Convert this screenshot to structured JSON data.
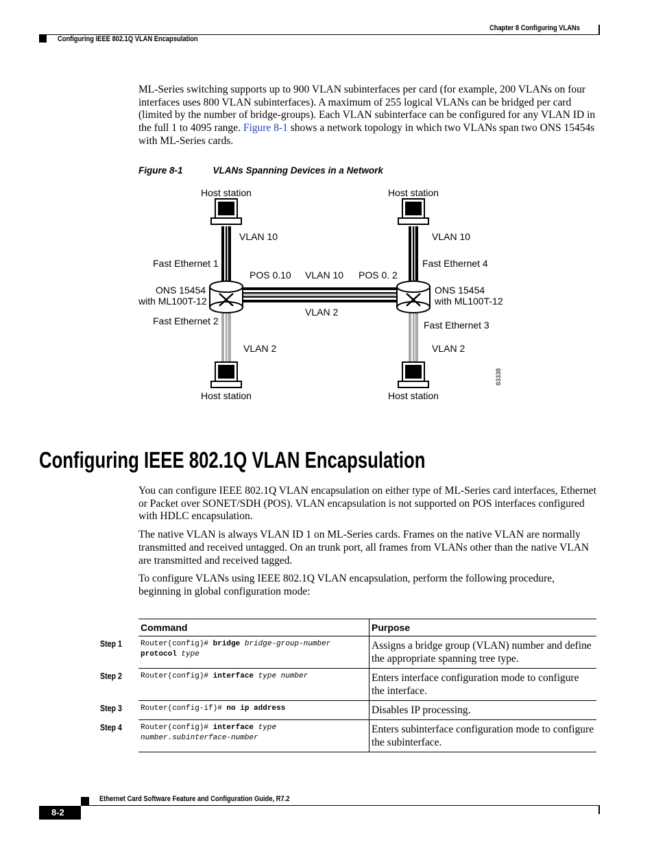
{
  "header": {
    "chapter": "Chapter 8 Configuring VLANs",
    "section": "Configuring IEEE 802.1Q VLAN Encapsulation"
  },
  "intro": {
    "before_link": "ML-Series switching supports up to 900 VLAN subinterfaces per card (for example, 200 VLANs on four interfaces uses 800 VLAN subinterfaces). A maximum of 255 logical VLANs can be bridged per card (limited by the number of bridge-groups). Each VLAN subinterface can be configured for any VLAN ID in the full 1 to 4095 range. ",
    "link": "Figure 8-1",
    "after_link": " shows a network topology in which two VLANs span two ONS 15454s with ML-Series cards."
  },
  "figure": {
    "label": "Figure 8-1",
    "caption": "VLANs Spanning Devices in a Network",
    "id": "83338",
    "labels": [
      "Host station",
      "Host station",
      "VLAN 10",
      "VLAN 10",
      "Fast Ethernet 1",
      "Fast Ethernet 4",
      "POS 0.10",
      "VLAN 10",
      "POS 0. 2",
      "ONS 15454",
      "with ML100T-12",
      "ONS 15454",
      "with ML100T-12",
      "VLAN 2",
      "Fast Ethernet 2",
      "Fast Ethernet 3",
      "VLAN 2",
      "VLAN 2",
      "Host station",
      "Host station"
    ]
  },
  "section": {
    "heading": "Configuring IEEE 802.1Q VLAN Encapsulation",
    "paragraphs": [
      "You can configure IEEE 802.1Q VLAN encapsulation on either type of ML-Series card interfaces, Ethernet or Packet over SONET/SDH (POS). VLAN encapsulation is not supported on POS interfaces configured with HDLC encapsulation.",
      "The native VLAN is always VLAN ID 1 on ML-Series cards. Frames on the native VLAN are normally transmitted and received untagged. On an trunk port, all frames from VLANs other than the native VLAN are transmitted and received tagged.",
      "To configure VLANs using IEEE 802.1Q VLAN encapsulation, perform the following procedure, beginning in global configuration mode:"
    ]
  },
  "table": {
    "header": [
      "Command",
      "Purpose"
    ],
    "rows": [
      {
        "step": "Step 1",
        "command": [
          {
            "text": "Router(config)# ",
            "style": "plain"
          },
          {
            "text": "bridge",
            "style": "bold"
          },
          {
            "text": " bridge-group-number ",
            "style": "italic"
          },
          {
            "text": "protocol",
            "style": "bold"
          },
          {
            "text": " type",
            "style": "italic"
          }
        ],
        "purpose": "Assigns a bridge group (VLAN) number and define the appropriate spanning tree type."
      },
      {
        "step": "Step 2",
        "command": [
          {
            "text": "Router(config)# ",
            "style": "plain"
          },
          {
            "text": "interface",
            "style": "bold"
          },
          {
            "text": " type number",
            "style": "italic"
          }
        ],
        "purpose": "Enters interface configuration mode to configure the interface."
      },
      {
        "step": "Step 3",
        "command": [
          {
            "text": "Router(config-if)# ",
            "style": "plain"
          },
          {
            "text": "no ip address",
            "style": "bold"
          }
        ],
        "purpose": "Disables IP processing."
      },
      {
        "step": "Step 4",
        "command": [
          {
            "text": "Router(config)# ",
            "style": "plain"
          },
          {
            "text": "interface",
            "style": "bold"
          },
          {
            "text": " type number.subinterface-number",
            "style": "italic"
          }
        ],
        "purpose": "Enters subinterface configuration mode to configure the subinterface."
      }
    ]
  },
  "footer": {
    "guide": "Ethernet Card Software Feature and Configuration Guide, R7.2",
    "page": "8-2"
  }
}
